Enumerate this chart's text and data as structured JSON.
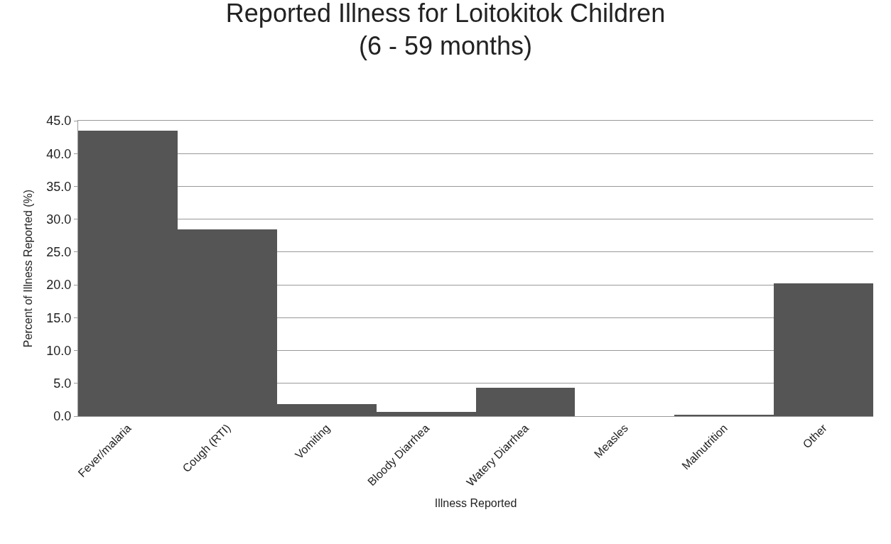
{
  "chart_data": {
    "type": "bar",
    "title": "Reported Illness for Loitokitok Children\n(6 - 59 months)",
    "xlabel": "Illness Reported",
    "ylabel": "Percent of Illness Reported (%)",
    "categories": [
      "Fever/malaria",
      "Cough (RTI)",
      "Vomiting",
      "Bloody Diarrhea",
      "Watery Diarrhea",
      "Measles",
      "Malnutrition",
      "Other"
    ],
    "values": [
      43.5,
      28.5,
      1.8,
      0.6,
      4.3,
      0,
      0.2,
      20.2
    ],
    "color": "#555555",
    "ylim": [
      0,
      45
    ],
    "yticks": [
      {
        "value": 0,
        "label": "0.0"
      },
      {
        "value": 5,
        "label": "5.0"
      },
      {
        "value": 10,
        "label": "10.0"
      },
      {
        "value": 15,
        "label": "15.0"
      },
      {
        "value": 20,
        "label": "20.0"
      },
      {
        "value": 25,
        "label": "25.0"
      },
      {
        "value": 30,
        "label": "30.0"
      },
      {
        "value": 35,
        "label": "35.0"
      },
      {
        "value": 40,
        "label": "40.0"
      },
      {
        "value": 45,
        "label": "45.0"
      }
    ],
    "grid": "y"
  }
}
